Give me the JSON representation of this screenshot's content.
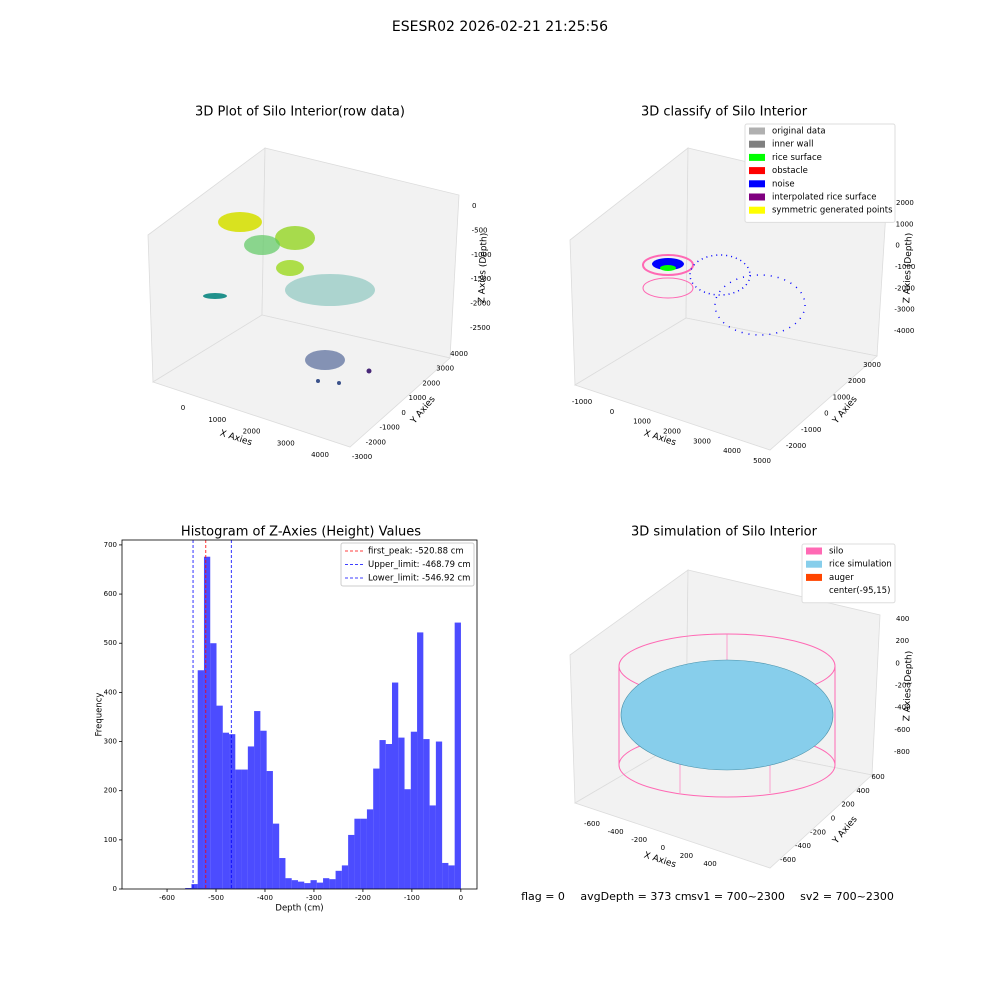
{
  "title": "ESESR02 2026-02-21 21:25:56",
  "chart_data": [
    {
      "type": "scatter3d",
      "title": "3D Plot of Silo Interior(row data)",
      "x_label": "X Axies",
      "y_label": "Y Axies",
      "z_label": "Z Axies (Depth)",
      "xticks": [
        0,
        1000,
        2000,
        3000,
        4000
      ],
      "yticks": [
        -3000,
        -2000,
        -1000,
        0,
        1000,
        2000,
        3000,
        4000
      ],
      "zticks": [
        0,
        -500,
        -1000,
        -1500,
        -2000,
        -2500
      ]
    },
    {
      "type": "scatter3d",
      "title": "3D classify of Silo Interior",
      "x_label": "X Axies",
      "y_label": "Y Axies",
      "z_label": "Z Axies (Depth)",
      "xticks": [
        -1000,
        0,
        1000,
        2000,
        3000,
        4000,
        5000
      ],
      "yticks": [
        -2000,
        -1000,
        0,
        1000,
        2000,
        3000
      ],
      "zticks": [
        2000,
        1000,
        0,
        -1000,
        -2000,
        -3000,
        -4000
      ],
      "legend": [
        {
          "name": "original data",
          "color": "#b0b0b0"
        },
        {
          "name": "inner wall",
          "color": "#808080"
        },
        {
          "name": "rice surface",
          "color": "#00ff00"
        },
        {
          "name": "obstacle",
          "color": "#ff0000"
        },
        {
          "name": "noise",
          "color": "#0000ff"
        },
        {
          "name": "interpolated rice surface",
          "color": "#800080"
        },
        {
          "name": "symmetric generated points",
          "color": "#ffff00"
        }
      ]
    },
    {
      "type": "histogram",
      "title": "Histogram of Z-Axies (Height) Values",
      "x_label": "Depth (cm)",
      "y_label": "Frequency",
      "color": "#0000ff",
      "alpha": 0.7,
      "bins": [
        -563,
        -550.2,
        -537.4,
        -524.6,
        -511.8,
        -499,
        -486.2,
        -473.4,
        -460.6,
        -447.8,
        -435,
        -422.2,
        -409.4,
        -396.6,
        -383.8,
        -371,
        -358.2,
        -345.4,
        -332.6,
        -319.8,
        -307,
        -294.2,
        -281.4,
        -268.6,
        -255.8,
        -243,
        -230.2,
        -217.4,
        -204.6,
        -191.8,
        -179,
        -166.2,
        -153.4,
        -140.6,
        -127.8,
        -115,
        -102.2,
        -89.4,
        -76.6,
        -63.8,
        -51,
        -38.2,
        -25.4,
        -12.6,
        0.2
      ],
      "values": [
        2,
        10,
        445,
        676,
        500,
        373,
        318,
        315,
        243,
        243,
        290,
        362,
        322,
        240,
        133,
        63,
        22,
        18,
        15,
        12,
        18,
        13,
        22,
        20,
        37,
        48,
        110,
        143,
        143,
        162,
        245,
        303,
        295,
        420,
        308,
        203,
        320,
        522,
        305,
        170,
        300,
        53,
        48,
        542
      ],
      "xlim": [
        -692,
        33
      ],
      "ylim": [
        0,
        710
      ],
      "xticks": [
        -600,
        -500,
        -400,
        -300,
        -200,
        -100,
        0
      ],
      "yticks": [
        0,
        100,
        200,
        300,
        400,
        500,
        600,
        700
      ],
      "vlines": [
        {
          "name": "first_peak: -520.88 cm",
          "value": -520.88,
          "color": "#ff0000"
        },
        {
          "name": "Upper_limit: -468.79 cm",
          "value": -468.79,
          "color": "#0000ff"
        },
        {
          "name": "Lower_limit: -546.92 cm",
          "value": -546.92,
          "color": "#0000ff"
        }
      ]
    },
    {
      "type": "surface3d",
      "title": "3D simulation of Silo Interior",
      "x_label": "X Axies",
      "y_label": "Y Axies",
      "z_label": "Z Axies (Depth)",
      "xticks": [
        -600,
        -400,
        -200,
        0,
        200,
        400
      ],
      "yticks": [
        -600,
        -400,
        -200,
        0,
        200,
        400,
        600
      ],
      "zticks": [
        400,
        200,
        0,
        -200,
        -400,
        -600,
        -800
      ],
      "legend": [
        {
          "name": "silo",
          "color": "#ff69b4"
        },
        {
          "name": "rice simulation",
          "color": "#87ceeb"
        },
        {
          "name": "auger",
          "color": "#ff4500"
        },
        {
          "name": "center(-95,15)"
        }
      ]
    }
  ],
  "status": [
    "flag = 0",
    "avgDepth = 373 cm",
    "sv1 = 700~2300",
    "sv2 = 700~2300"
  ]
}
